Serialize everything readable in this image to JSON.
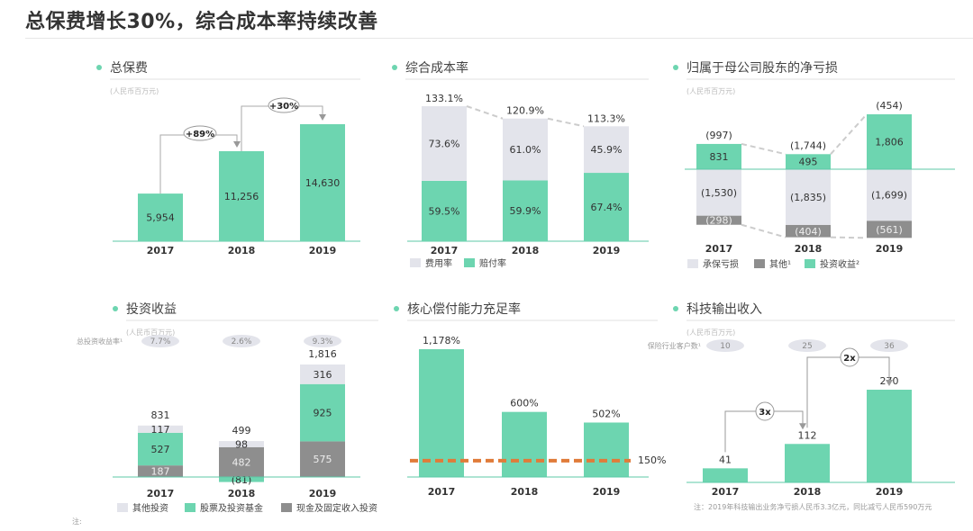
{
  "title": "总保费增长30%，综合成本率持续改善",
  "colors": {
    "green": "#6dd5b0",
    "light_gray": "#e3e4eb",
    "dark_gray": "#8e8e8e",
    "axis": "#5cc9a7",
    "reference_line": "#e07b39"
  },
  "footnote": "注:",
  "chart_data": [
    {
      "type": "bar",
      "title": "总保费",
      "subtitle": "(人民币百万元)",
      "categories": [
        "2017",
        "2018",
        "2019"
      ],
      "values": [
        5954,
        11256,
        14630
      ],
      "labels": [
        "5,954",
        "11,256",
        "14,630"
      ],
      "annotations": [
        {
          "from": "2017",
          "to": "2018",
          "label": "+89%"
        },
        {
          "from": "2018",
          "to": "2019",
          "label": "+30%"
        }
      ]
    },
    {
      "type": "bar",
      "stacked": true,
      "title": "综合成本率",
      "categories": [
        "2017",
        "2018",
        "2019"
      ],
      "series": [
        {
          "name": "赔付率",
          "values": [
            59.5,
            59.9,
            67.4
          ],
          "labels": [
            "59.5%",
            "59.9%",
            "67.4%"
          ]
        },
        {
          "name": "费用率",
          "values": [
            73.6,
            61.0,
            45.9
          ],
          "labels": [
            "73.6%",
            "61.0%",
            "45.9%"
          ]
        }
      ],
      "totals": [
        133.1,
        120.9,
        113.3
      ],
      "total_labels": [
        "133.1%",
        "120.9%",
        "113.3%"
      ],
      "legend": [
        "费用率",
        "赔付率"
      ]
    },
    {
      "type": "bar",
      "stacked": true,
      "title": "归属于母公司股东的净亏损",
      "subtitle": "(人民币百万元)",
      "categories": [
        "2017",
        "2018",
        "2019"
      ],
      "series": [
        {
          "name": "承保亏损",
          "values": [
            -1530,
            -1835,
            -1699
          ],
          "labels": [
            "(1,530)",
            "(1,835)",
            "(1,699)"
          ]
        },
        {
          "name": "其他¹",
          "values": [
            -298,
            -404,
            -561
          ],
          "labels": [
            "(298)",
            "(404)",
            "(561)"
          ]
        },
        {
          "name": "投资收益²",
          "values": [
            831,
            495,
            1806
          ],
          "labels": [
            "831",
            "495",
            "1,806"
          ]
        }
      ],
      "net": [
        -997,
        -1744,
        -454
      ],
      "net_labels": [
        "(997)",
        "(1,744)",
        "(454)"
      ]
    },
    {
      "type": "bar",
      "stacked": true,
      "title": "投资收益",
      "subtitle": "(人民币百万元)",
      "ratio_label": "总投资收益率¹",
      "ratios": [
        "7.7%",
        "2.6%",
        "9.3%"
      ],
      "categories": [
        "2017",
        "2018",
        "2019"
      ],
      "series": [
        {
          "name": "现金及固定收入投资",
          "values": [
            187,
            482,
            575
          ],
          "labels": [
            "187",
            "482",
            "575"
          ]
        },
        {
          "name": "股票及投资基金",
          "values": [
            527,
            -81,
            925
          ],
          "labels": [
            "527",
            "(81)",
            "925"
          ]
        },
        {
          "name": "其他投资",
          "values": [
            117,
            98,
            316
          ],
          "labels": [
            "117",
            "98",
            "316"
          ]
        }
      ],
      "totals": [
        831,
        499,
        1816
      ],
      "total_labels": [
        "831",
        "499",
        "1,816"
      ],
      "legend": [
        "其他投资",
        "股票及投资基金",
        "现金及固定收入投资"
      ]
    },
    {
      "type": "bar",
      "title": "核心偿付能力充足率",
      "categories": [
        "2017",
        "2018",
        "2019"
      ],
      "values": [
        1178,
        600,
        502
      ],
      "labels": [
        "1,178%",
        "600%",
        "502%"
      ],
      "reference": {
        "value": 150,
        "label": "150%"
      }
    },
    {
      "type": "bar",
      "title": "科技输出收入",
      "subtitle": "(人民币百万元)",
      "count_label": "保险行业客户数¹",
      "counts": [
        "10",
        "25",
        "36"
      ],
      "categories": [
        "2017",
        "2018",
        "2019"
      ],
      "values": [
        41,
        112,
        270
      ],
      "labels": [
        "41",
        "112",
        "270"
      ],
      "annotations": [
        {
          "from": "2017",
          "to": "2018",
          "label": "3x"
        },
        {
          "from": "2018",
          "to": "2019",
          "label": "2x"
        }
      ],
      "note": "注：2019年科技输出业务净亏损人民币3.3亿元，同比减亏人民币590万元"
    }
  ]
}
